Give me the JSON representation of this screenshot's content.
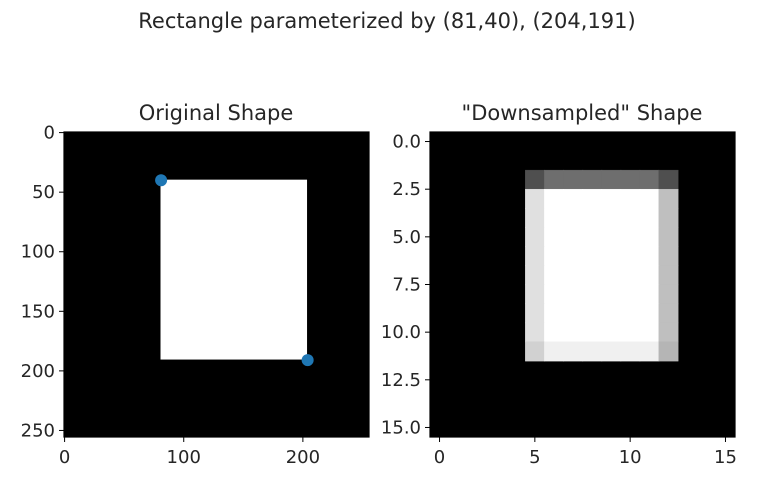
{
  "figure": {
    "suptitle": "Rectangle parameterized by (81,40), (204,191)"
  },
  "chart_data": [
    {
      "type": "heatmap",
      "title": "Original Shape",
      "image_size": 256,
      "extent": [
        -0.5,
        255.5
      ],
      "rect": {
        "x0": 81,
        "y0": 40,
        "x1": 204,
        "y1": 191
      },
      "points": [
        {
          "x": 81,
          "y": 40
        },
        {
          "x": 204,
          "y": 191
        }
      ],
      "xticks": [
        0,
        100,
        200
      ],
      "xtick_labels": [
        "0",
        "100",
        "200"
      ],
      "yticks": [
        0,
        50,
        100,
        150,
        200,
        250
      ],
      "ytick_labels": [
        "0",
        "50",
        "100",
        "150",
        "200",
        "250"
      ],
      "colormap": "gray",
      "marker_color": "#1f77b4",
      "background": "#000000",
      "foreground": "#ffffff"
    },
    {
      "type": "heatmap",
      "title": "\"Downsampled\" Shape",
      "grid_size": 16,
      "extent": [
        -0.5,
        15.5
      ],
      "cells": {
        "top_row": 2,
        "bottom_row": 11,
        "left_col": 5,
        "right_col": 12
      },
      "cell_levels": {
        "corner_top_left": 0.31,
        "top_edge": 0.43,
        "corner_top_right": 0.31,
        "left_edge": 0.88,
        "interior": 1.0,
        "right_edge": 0.75,
        "corner_bottom_left": 0.82,
        "bottom_edge": 0.94,
        "corner_bottom_right": 0.71
      },
      "xticks": [
        0,
        5,
        10,
        15
      ],
      "xtick_labels": [
        "0",
        "5",
        "10",
        "15"
      ],
      "yticks": [
        0,
        2.5,
        5,
        7.5,
        10,
        12.5,
        15
      ],
      "ytick_labels": [
        "0.0",
        "2.5",
        "5.0",
        "7.5",
        "10.0",
        "12.5",
        "15.0"
      ],
      "colormap": "gray",
      "background": "#000000"
    }
  ]
}
